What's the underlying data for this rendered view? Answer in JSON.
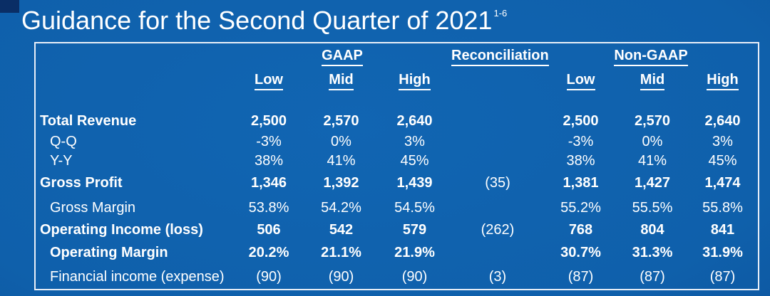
{
  "title": {
    "text": "Guidance for the Second Quarter of 2021",
    "superscript": "1-6"
  },
  "colors": {
    "background_center": "#1165b2",
    "background_edge": "#0a4488",
    "corner_accent": "#0a2e66",
    "table_border": "#e9eff8",
    "text": "#ffffff"
  },
  "table": {
    "group_headers": [
      "GAAP",
      "Reconciliation",
      "Non-GAAP"
    ],
    "sub_headers": [
      "Low",
      "Mid",
      "High",
      "Low",
      "Mid",
      "High"
    ],
    "rows": [
      {
        "label": "Total Revenue",
        "bold": true,
        "indent": false,
        "gaap": [
          "2,500",
          "2,570",
          "2,640"
        ],
        "reconciliation": "",
        "non_gaap": [
          "2,500",
          "2,570",
          "2,640"
        ]
      },
      {
        "label": "Q-Q",
        "bold": false,
        "indent": true,
        "gaap": [
          "-3%",
          "0%",
          "3%"
        ],
        "reconciliation": "",
        "non_gaap": [
          "-3%",
          "0%",
          "3%"
        ]
      },
      {
        "label": "Y-Y",
        "bold": false,
        "indent": true,
        "gaap": [
          "38%",
          "41%",
          "45%"
        ],
        "reconciliation": "",
        "non_gaap": [
          "38%",
          "41%",
          "45%"
        ]
      },
      {
        "label": "Gross Profit",
        "bold": true,
        "indent": false,
        "gaap": [
          "1,346",
          "1,392",
          "1,439"
        ],
        "reconciliation": "(35)",
        "non_gaap": [
          "1,381",
          "1,427",
          "1,474"
        ]
      },
      {
        "label": "Gross Margin",
        "bold": false,
        "indent": true,
        "gaap": [
          "53.8%",
          "54.2%",
          "54.5%"
        ],
        "reconciliation": "",
        "non_gaap": [
          "55.2%",
          "55.5%",
          "55.8%"
        ]
      },
      {
        "label": "Operating Income (loss)",
        "bold": true,
        "indent": false,
        "gaap": [
          "506",
          "542",
          "579"
        ],
        "reconciliation": "(262)",
        "non_gaap": [
          "768",
          "804",
          "841"
        ]
      },
      {
        "label": "Operating Margin",
        "bold": true,
        "indent": true,
        "gaap": [
          "20.2%",
          "21.1%",
          "21.9%"
        ],
        "reconciliation": "",
        "non_gaap": [
          "30.7%",
          "31.3%",
          "31.9%"
        ]
      },
      {
        "label": "Financial income (expense)",
        "bold": false,
        "indent": true,
        "gaap": [
          "(90)",
          "(90)",
          "(90)"
        ],
        "reconciliation": "(3)",
        "non_gaap": [
          "(87)",
          "(87)",
          "(87)"
        ]
      }
    ]
  }
}
